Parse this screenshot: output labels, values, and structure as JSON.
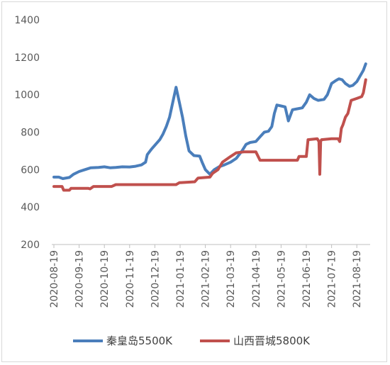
{
  "chart_data": {
    "type": "line",
    "title": "",
    "xlabel": "",
    "ylabel": "",
    "ylim": [
      200,
      1400
    ],
    "y_ticks": [
      "200",
      "400",
      "600",
      "800",
      "1000",
      "1200",
      "1400"
    ],
    "x_ticks": [
      "2020-08-19",
      "2020-09-19",
      "2020-10-19",
      "2020-11-19",
      "2020-12-19",
      "2021-01-19",
      "2021-02-19",
      "2021-03-19",
      "2021-04-19",
      "2021-05-19",
      "2021-06-19",
      "2021-07-19",
      "2021-08-19"
    ],
    "legend_position": "bottom",
    "grid": false,
    "series": [
      {
        "name": "秦皇岛5500K",
        "color": "#4a7ebb",
        "points": [
          [
            "2020-08-19",
            560
          ],
          [
            "2020-08-25",
            560
          ],
          [
            "2020-08-30",
            552
          ],
          [
            "2020-09-07",
            558
          ],
          [
            "2020-09-12",
            575
          ],
          [
            "2020-09-19",
            590
          ],
          [
            "2020-09-26",
            600
          ],
          [
            "2020-10-03",
            610
          ],
          [
            "2020-10-12",
            612
          ],
          [
            "2020-10-19",
            615
          ],
          [
            "2020-10-26",
            610
          ],
          [
            "2020-11-02",
            612
          ],
          [
            "2020-11-10",
            615
          ],
          [
            "2020-11-19",
            614
          ],
          [
            "2020-11-26",
            618
          ],
          [
            "2020-12-03",
            625
          ],
          [
            "2020-12-08",
            640
          ],
          [
            "2020-12-10",
            680
          ],
          [
            "2020-12-15",
            710
          ],
          [
            "2020-12-20",
            735
          ],
          [
            "2020-12-25",
            760
          ],
          [
            "2020-12-29",
            790
          ],
          [
            "2021-01-02",
            830
          ],
          [
            "2021-01-06",
            880
          ],
          [
            "2021-01-10",
            960
          ],
          [
            "2021-01-14",
            1040
          ],
          [
            "2021-01-18",
            960
          ],
          [
            "2021-01-22",
            880
          ],
          [
            "2021-01-26",
            780
          ],
          [
            "2021-01-30",
            700
          ],
          [
            "2021-02-05",
            675
          ],
          [
            "2021-02-12",
            672
          ],
          [
            "2021-02-15",
            640
          ],
          [
            "2021-02-19",
            600
          ],
          [
            "2021-02-24",
            575
          ],
          [
            "2021-03-01",
            600
          ],
          [
            "2021-03-06",
            615
          ],
          [
            "2021-03-12",
            625
          ],
          [
            "2021-03-19",
            640
          ],
          [
            "2021-03-26",
            660
          ],
          [
            "2021-04-02",
            700
          ],
          [
            "2021-04-07",
            735
          ],
          [
            "2021-04-12",
            745
          ],
          [
            "2021-04-19",
            750
          ],
          [
            "2021-04-24",
            775
          ],
          [
            "2021-04-29",
            800
          ],
          [
            "2021-05-04",
            805
          ],
          [
            "2021-05-08",
            830
          ],
          [
            "2021-05-11",
            900
          ],
          [
            "2021-05-14",
            945
          ],
          [
            "2021-05-19",
            940
          ],
          [
            "2021-05-24",
            935
          ],
          [
            "2021-05-28",
            860
          ],
          [
            "2021-06-02",
            920
          ],
          [
            "2021-06-08",
            925
          ],
          [
            "2021-06-14",
            930
          ],
          [
            "2021-06-19",
            960
          ],
          [
            "2021-06-23",
            1000
          ],
          [
            "2021-06-28",
            980
          ],
          [
            "2021-07-03",
            970
          ],
          [
            "2021-07-10",
            975
          ],
          [
            "2021-07-14",
            1000
          ],
          [
            "2021-07-19",
            1060
          ],
          [
            "2021-07-24",
            1075
          ],
          [
            "2021-07-28",
            1085
          ],
          [
            "2021-08-01",
            1080
          ],
          [
            "2021-08-05",
            1060
          ],
          [
            "2021-08-10",
            1045
          ],
          [
            "2021-08-14",
            1050
          ],
          [
            "2021-08-19",
            1070
          ],
          [
            "2021-08-23",
            1100
          ],
          [
            "2021-08-27",
            1130
          ],
          [
            "2021-08-30",
            1165
          ]
        ]
      },
      {
        "name": "山西晋城5800K",
        "color": "#c0504d",
        "points": [
          [
            "2020-08-19",
            510
          ],
          [
            "2020-08-29",
            510
          ],
          [
            "2020-08-31",
            490
          ],
          [
            "2020-09-07",
            490
          ],
          [
            "2020-09-09",
            500
          ],
          [
            "2020-09-30",
            500
          ],
          [
            "2020-10-02",
            497
          ],
          [
            "2020-10-06",
            510
          ],
          [
            "2020-10-28",
            510
          ],
          [
            "2020-11-02",
            520
          ],
          [
            "2020-11-30",
            520
          ],
          [
            "2020-12-02",
            520
          ],
          [
            "2021-01-14",
            520
          ],
          [
            "2021-01-18",
            530
          ],
          [
            "2021-02-06",
            535
          ],
          [
            "2021-02-10",
            555
          ],
          [
            "2021-02-24",
            560
          ],
          [
            "2021-02-27",
            580
          ],
          [
            "2021-03-05",
            600
          ],
          [
            "2021-03-10",
            640
          ],
          [
            "2021-03-19",
            670
          ],
          [
            "2021-03-26",
            690
          ],
          [
            "2021-04-05",
            695
          ],
          [
            "2021-04-19",
            695
          ],
          [
            "2021-04-24",
            650
          ],
          [
            "2021-05-19",
            650
          ],
          [
            "2021-06-08",
            650
          ],
          [
            "2021-06-10",
            670
          ],
          [
            "2021-06-19",
            670
          ],
          [
            "2021-06-21",
            760
          ],
          [
            "2021-07-02",
            765
          ],
          [
            "2021-07-04",
            750
          ],
          [
            "2021-07-05",
            575
          ],
          [
            "2021-07-06",
            750
          ],
          [
            "2021-07-07",
            760
          ],
          [
            "2021-07-19",
            765
          ],
          [
            "2021-07-27",
            765
          ],
          [
            "2021-07-29",
            750
          ],
          [
            "2021-07-31",
            820
          ],
          [
            "2021-08-02",
            840
          ],
          [
            "2021-08-05",
            880
          ],
          [
            "2021-08-08",
            900
          ],
          [
            "2021-08-12",
            970
          ],
          [
            "2021-08-19",
            980
          ],
          [
            "2021-08-25",
            990
          ],
          [
            "2021-08-27",
            1010
          ],
          [
            "2021-08-30",
            1080
          ]
        ]
      }
    ]
  }
}
